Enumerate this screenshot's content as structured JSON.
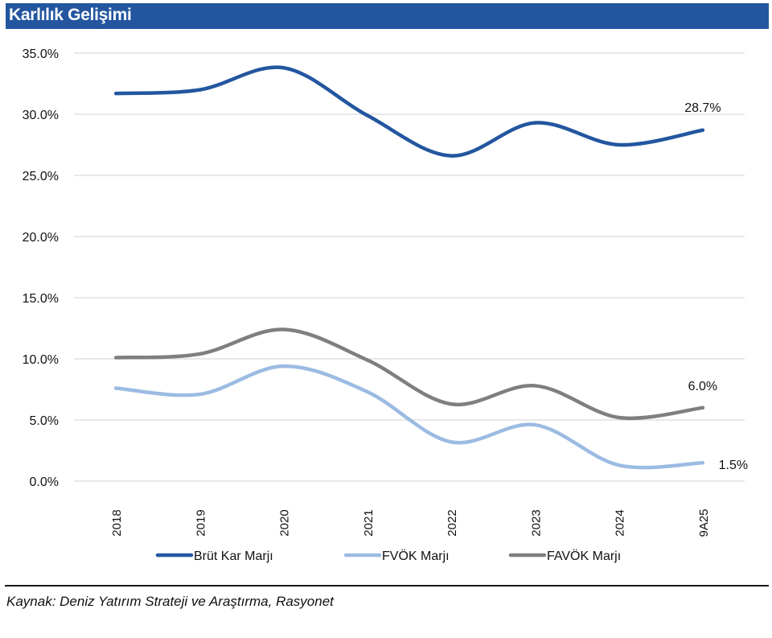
{
  "header": {
    "title": "Karlılık Gelişimi"
  },
  "colors": {
    "title_bar": "#23569f",
    "brut": "#23569f",
    "fvok": "#9bbbe2",
    "favok": "#7f7f7f",
    "grid": "#d9d9d9"
  },
  "chart_data": {
    "type": "line",
    "title": "Karlılık Gelişimi",
    "xlabel": "",
    "ylabel": "",
    "categories": [
      "2018",
      "2019",
      "2020",
      "2021",
      "2022",
      "2023",
      "2024",
      "9A25"
    ],
    "ylim": [
      0,
      35
    ],
    "yticks": [
      0,
      5,
      10,
      15,
      20,
      25,
      30,
      35
    ],
    "ytick_labels": [
      "0.0%",
      "5.0%",
      "10.0%",
      "15.0%",
      "20.0%",
      "25.0%",
      "30.0%",
      "35.0%"
    ],
    "grid": true,
    "smooth": true,
    "legend_position": "bottom",
    "series": [
      {
        "name": "Brüt Kar Marjı",
        "color": "#23569f",
        "values": [
          31.7,
          32.0,
          33.8,
          29.9,
          26.6,
          29.3,
          27.5,
          28.7
        ],
        "end_label": "28.7%"
      },
      {
        "name": "FVÖK Marjı",
        "color": "#9bbbe2",
        "values": [
          7.6,
          7.1,
          9.4,
          7.3,
          3.2,
          4.6,
          1.3,
          1.5
        ],
        "end_label": "1.5%"
      },
      {
        "name": "FAVÖK Marjı",
        "color": "#7f7f7f",
        "values": [
          10.1,
          10.4,
          12.4,
          9.9,
          6.3,
          7.8,
          5.2,
          6.0
        ],
        "end_label": "6.0%"
      }
    ]
  },
  "footer": {
    "source": "Kaynak: Deniz Yatırım Strateji ve Araştırma, Rasyonet"
  }
}
